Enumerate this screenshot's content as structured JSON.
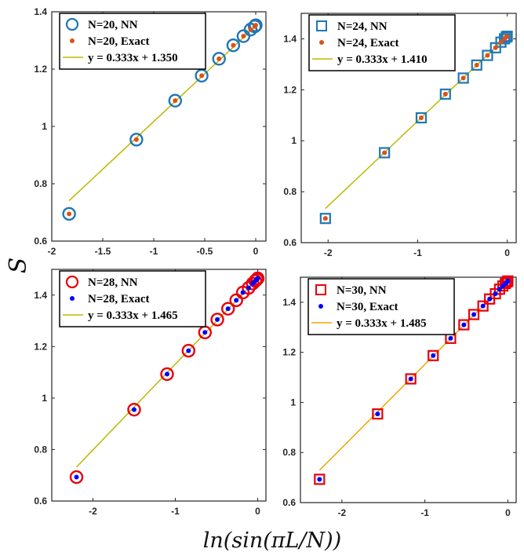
{
  "figure": {
    "xlabel": "ln(sin(πL/N))",
    "ylabel": "S"
  },
  "chart_data": [
    {
      "type": "scatter",
      "panel": "top-left",
      "xlim": [
        -2,
        0.1
      ],
      "ylim": [
        0.6,
        1.4
      ],
      "xticks": [
        -2,
        -1.5,
        -1,
        -0.5,
        0
      ],
      "xtick_labels": [
        "-2",
        "-1.5",
        "-1",
        "-0.5",
        "0"
      ],
      "yticks": [
        0.6,
        0.8,
        1,
        1.2,
        1.4
      ],
      "ytick_labels": [
        "0.6",
        "0.8",
        "1",
        "1.2",
        "1.4"
      ],
      "legend_position": "top-left",
      "series": [
        {
          "name": "N=20, NN",
          "marker": "circle",
          "color": "#1f77b4",
          "x": [
            -1.83,
            -1.17,
            -0.79,
            -0.53,
            -0.36,
            -0.22,
            -0.12,
            -0.05,
            -0.01,
            0.0
          ],
          "y": [
            0.695,
            0.954,
            1.09,
            1.177,
            1.236,
            1.283,
            1.315,
            1.338,
            1.349,
            1.353
          ]
        },
        {
          "name": "N=20, Exact",
          "marker": "dot",
          "color": "#d95319",
          "x": [
            -1.83,
            -1.17,
            -0.79,
            -0.53,
            -0.36,
            -0.22,
            -0.12,
            -0.05,
            -0.01,
            0.0
          ],
          "y": [
            0.695,
            0.954,
            1.09,
            1.177,
            1.236,
            1.283,
            1.315,
            1.338,
            1.349,
            1.353
          ]
        },
        {
          "name": "y = 0.333x + 1.350",
          "marker": "line",
          "color": "#bdb800",
          "x": [
            -1.83,
            0.0
          ],
          "y": [
            0.741,
            1.35
          ]
        }
      ]
    },
    {
      "type": "scatter",
      "panel": "top-right",
      "xlim": [
        -2.3,
        0.1
      ],
      "ylim": [
        0.6,
        1.5
      ],
      "xticks": [
        -2,
        -1,
        0
      ],
      "xtick_labels": [
        "-2",
        "-1",
        "0"
      ],
      "yticks": [
        0.6,
        0.8,
        1,
        1.2,
        1.4
      ],
      "ytick_labels": [
        "0.6",
        "0.8",
        "1",
        "1.2",
        "1.4"
      ],
      "legend_position": "top-left",
      "series": [
        {
          "name": "N=24, NN",
          "marker": "square",
          "color": "#1f77b4",
          "x": [
            -2.03,
            -1.37,
            -0.96,
            -0.69,
            -0.49,
            -0.34,
            -0.22,
            -0.13,
            -0.07,
            -0.03,
            -0.01,
            0.0
          ],
          "y": [
            0.695,
            0.953,
            1.09,
            1.183,
            1.246,
            1.297,
            1.335,
            1.365,
            1.387,
            1.4,
            1.407,
            1.41
          ]
        },
        {
          "name": "N=24, Exact",
          "marker": "dot",
          "color": "#d95319",
          "x": [
            -2.03,
            -1.37,
            -0.96,
            -0.69,
            -0.49,
            -0.34,
            -0.22,
            -0.13,
            -0.07,
            -0.03,
            -0.01,
            0.0
          ],
          "y": [
            0.695,
            0.953,
            1.09,
            1.183,
            1.246,
            1.297,
            1.335,
            1.365,
            1.387,
            1.4,
            1.407,
            1.41
          ]
        },
        {
          "name": "y = 0.333x + 1.410",
          "marker": "line",
          "color": "#bdb800",
          "x": [
            -2.03,
            0.0
          ],
          "y": [
            0.734,
            1.41
          ]
        }
      ]
    },
    {
      "type": "scatter",
      "panel": "bottom-left",
      "xlim": [
        -2.5,
        0.1
      ],
      "ylim": [
        0.6,
        1.5
      ],
      "xticks": [
        -2,
        -1,
        0
      ],
      "xtick_labels": [
        "-2",
        "-1",
        "0"
      ],
      "yticks": [
        0.6,
        0.8,
        1,
        1.2,
        1.4
      ],
      "ytick_labels": [
        "0.6",
        "0.8",
        "1",
        "1.2",
        "1.4"
      ],
      "legend_position": "top-left",
      "series": [
        {
          "name": "N=28, NN",
          "marker": "circle",
          "color": "#e8000b",
          "x": [
            -2.2,
            -1.5,
            -1.1,
            -0.84,
            -0.64,
            -0.49,
            -0.36,
            -0.26,
            -0.18,
            -0.11,
            -0.06,
            -0.03,
            -0.01,
            0.0
          ],
          "y": [
            0.693,
            0.955,
            1.093,
            1.184,
            1.255,
            1.305,
            1.347,
            1.38,
            1.41,
            1.428,
            1.445,
            1.455,
            1.461,
            1.465
          ]
        },
        {
          "name": "N=28, Exact",
          "marker": "dot",
          "color": "#0000ff",
          "x": [
            -2.2,
            -1.5,
            -1.1,
            -0.84,
            -0.64,
            -0.49,
            -0.36,
            -0.26,
            -0.18,
            -0.11,
            -0.06,
            -0.03,
            -0.01,
            0.0
          ],
          "y": [
            0.693,
            0.955,
            1.093,
            1.184,
            1.255,
            1.305,
            1.347,
            1.38,
            1.41,
            1.428,
            1.445,
            1.455,
            1.461,
            1.465
          ]
        },
        {
          "name": "y = 0.333x + 1.465",
          "marker": "line",
          "color": "#bdb800",
          "x": [
            -2.2,
            0.0
          ],
          "y": [
            0.732,
            1.465
          ]
        }
      ]
    },
    {
      "type": "scatter",
      "panel": "bottom-right",
      "xlim": [
        -2.5,
        0.1
      ],
      "ylim": [
        0.6,
        1.5
      ],
      "xticks": [
        -2,
        -1,
        0
      ],
      "xtick_labels": [
        "-2",
        "-1",
        "0"
      ],
      "yticks": [
        0.6,
        0.8,
        1,
        1.2,
        1.4
      ],
      "ytick_labels": [
        "0.6",
        "0.8",
        "1",
        "1.2",
        "1.4"
      ],
      "legend_position": "top-left",
      "series": [
        {
          "name": "N=30, NN",
          "marker": "square",
          "color": "#e8000b",
          "x": [
            -2.27,
            -1.57,
            -1.17,
            -0.9,
            -0.69,
            -0.53,
            -0.41,
            -0.3,
            -0.22,
            -0.15,
            -0.1,
            -0.06,
            -0.03,
            -0.01,
            0.0
          ],
          "y": [
            0.693,
            0.954,
            1.094,
            1.187,
            1.256,
            1.31,
            1.351,
            1.385,
            1.413,
            1.434,
            1.452,
            1.465,
            1.475,
            1.481,
            1.485
          ]
        },
        {
          "name": "N=30, Exact",
          "marker": "dot",
          "color": "#0000ff",
          "x": [
            -2.27,
            -1.57,
            -1.17,
            -0.9,
            -0.69,
            -0.53,
            -0.41,
            -0.3,
            -0.22,
            -0.15,
            -0.1,
            -0.06,
            -0.03,
            -0.01,
            0.0
          ],
          "y": [
            0.693,
            0.954,
            1.094,
            1.187,
            1.256,
            1.31,
            1.351,
            1.385,
            1.413,
            1.434,
            1.452,
            1.465,
            1.475,
            1.481,
            1.485
          ]
        },
        {
          "name": "y = 0.333x + 1.485",
          "marker": "line",
          "color": "#f0a500",
          "x": [
            -2.27,
            0.0
          ],
          "y": [
            0.729,
            1.485
          ]
        }
      ]
    }
  ]
}
